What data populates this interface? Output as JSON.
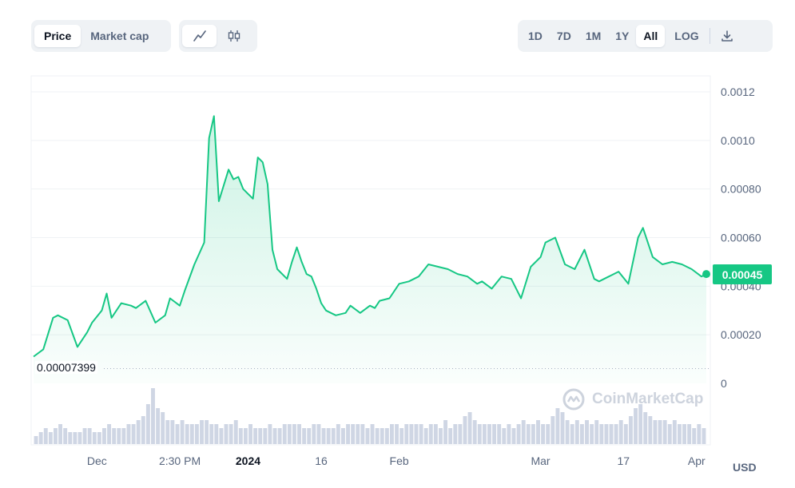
{
  "toolbar": {
    "metric_tabs": [
      {
        "label": "Price",
        "active": true
      },
      {
        "label": "Market cap",
        "active": false
      }
    ],
    "chart_type_tabs": [
      {
        "icon": "line-chart-icon",
        "active": true
      },
      {
        "icon": "candlestick-icon",
        "active": false
      }
    ],
    "range_tabs": [
      {
        "label": "1D",
        "active": false
      },
      {
        "label": "7D",
        "active": false
      },
      {
        "label": "1M",
        "active": false
      },
      {
        "label": "1Y",
        "active": false
      },
      {
        "label": "All",
        "active": true
      }
    ],
    "log_label": "LOG",
    "download_icon": "download-icon"
  },
  "chart_data": {
    "type": "area",
    "title": "",
    "xlabel": "",
    "ylabel": "",
    "currency": "USD",
    "ylim": [
      0,
      0.0012
    ],
    "y_ticks": [
      "0.0012",
      "0.0010",
      "0.00080",
      "0.00060",
      "0.00040",
      "0.00020",
      "0"
    ],
    "y_tick_values": [
      0.0012,
      0.001,
      0.0008,
      0.0006,
      0.0004,
      0.0002,
      0
    ],
    "x_ticks": [
      {
        "label": "Dec",
        "day": 13,
        "bold": false
      },
      {
        "label": "2:30 PM",
        "day": 30,
        "bold": false
      },
      {
        "label": "2024",
        "day": 44,
        "bold": true
      },
      {
        "label": "16",
        "day": 59,
        "bold": false
      },
      {
        "label": "Feb",
        "day": 75,
        "bold": false
      },
      {
        "label": "Mar",
        "day": 104,
        "bold": false
      },
      {
        "label": "17",
        "day": 121,
        "bold": false
      },
      {
        "label": "Apr",
        "day": 136,
        "bold": false
      }
    ],
    "x_range_days": [
      0,
      138
    ],
    "current_price": "0.00045",
    "min_price": "0.00007399",
    "min_value": 7.399e-05,
    "line_color": "#16c784",
    "volume_color": "#cfd6e4",
    "series": [
      {
        "x": [
          0,
          2,
          4,
          5,
          7,
          9,
          11,
          12,
          14,
          15,
          16,
          18,
          20,
          21,
          23,
          25,
          27,
          28,
          30,
          31,
          33,
          35,
          36,
          37,
          38,
          40,
          41,
          42,
          43,
          44,
          45,
          46,
          47,
          48,
          49,
          50,
          52,
          53,
          54,
          55,
          56,
          57,
          58,
          59,
          60,
          62,
          64,
          65,
          67,
          69,
          70,
          71,
          73,
          75,
          77,
          79,
          81,
          83,
          85,
          87,
          89,
          91,
          92,
          94,
          96,
          98,
          100,
          102,
          104,
          105,
          107,
          109,
          111,
          113,
          115,
          116,
          118,
          120,
          122,
          124,
          125,
          127,
          129,
          131,
          133,
          135,
          137,
          138
        ],
        "values": [
          0.00011,
          0.00014,
          0.00027,
          0.00028,
          0.00026,
          0.00015,
          0.00021,
          0.00025,
          0.0003,
          0.00037,
          0.00027,
          0.00033,
          0.00032,
          0.00031,
          0.00034,
          0.00025,
          0.00028,
          0.00035,
          0.00032,
          0.00038,
          0.00049,
          0.00058,
          0.00101,
          0.0011,
          0.00075,
          0.00088,
          0.00084,
          0.00085,
          0.0008,
          0.00078,
          0.00076,
          0.00093,
          0.00091,
          0.00082,
          0.00055,
          0.00047,
          0.00043,
          0.0005,
          0.00056,
          0.0005,
          0.00045,
          0.00044,
          0.00039,
          0.00033,
          0.0003,
          0.00028,
          0.00029,
          0.00032,
          0.00029,
          0.00032,
          0.00031,
          0.00034,
          0.00035,
          0.00041,
          0.00042,
          0.00044,
          0.00049,
          0.00048,
          0.00047,
          0.00045,
          0.00044,
          0.00041,
          0.00042,
          0.00039,
          0.00044,
          0.00043,
          0.00035,
          0.00048,
          0.00052,
          0.00058,
          0.0006,
          0.00049,
          0.00047,
          0.00055,
          0.00043,
          0.00042,
          0.00044,
          0.00046,
          0.00041,
          0.0006,
          0.00064,
          0.00052,
          0.00049,
          0.0005,
          0.00049,
          0.00047,
          0.00044,
          0.00045
        ]
      }
    ],
    "volume": [
      2,
      3,
      4,
      3,
      4,
      5,
      4,
      3,
      3,
      3,
      4,
      4,
      3,
      3,
      4,
      5,
      4,
      4,
      4,
      5,
      5,
      6,
      7,
      10,
      14,
      9,
      8,
      6,
      6,
      5,
      6,
      5,
      5,
      5,
      6,
      6,
      5,
      5,
      4,
      5,
      5,
      6,
      4,
      4,
      5,
      4,
      4,
      4,
      5,
      4,
      4,
      5,
      5,
      5,
      5,
      4,
      4,
      5,
      5,
      4,
      4,
      4,
      5,
      4,
      5,
      5,
      5,
      5,
      4,
      5,
      4,
      4,
      4,
      5,
      5,
      4,
      5,
      5,
      5,
      5,
      4,
      5,
      5,
      4,
      6,
      4,
      5,
      5,
      7,
      8,
      6,
      5,
      5,
      5,
      5,
      5,
      4,
      5,
      4,
      5,
      6,
      5,
      5,
      6,
      5,
      5,
      7,
      9,
      8,
      6,
      5,
      6,
      5,
      6,
      5,
      6,
      5,
      5,
      5,
      5,
      6,
      5,
      7,
      9,
      10,
      8,
      7,
      6,
      6,
      6,
      5,
      6,
      5,
      5,
      5,
      4,
      5,
      4
    ]
  },
  "watermark": {
    "text": "CoinMarketCap",
    "icon": "coinmarketcap-logo-icon"
  }
}
